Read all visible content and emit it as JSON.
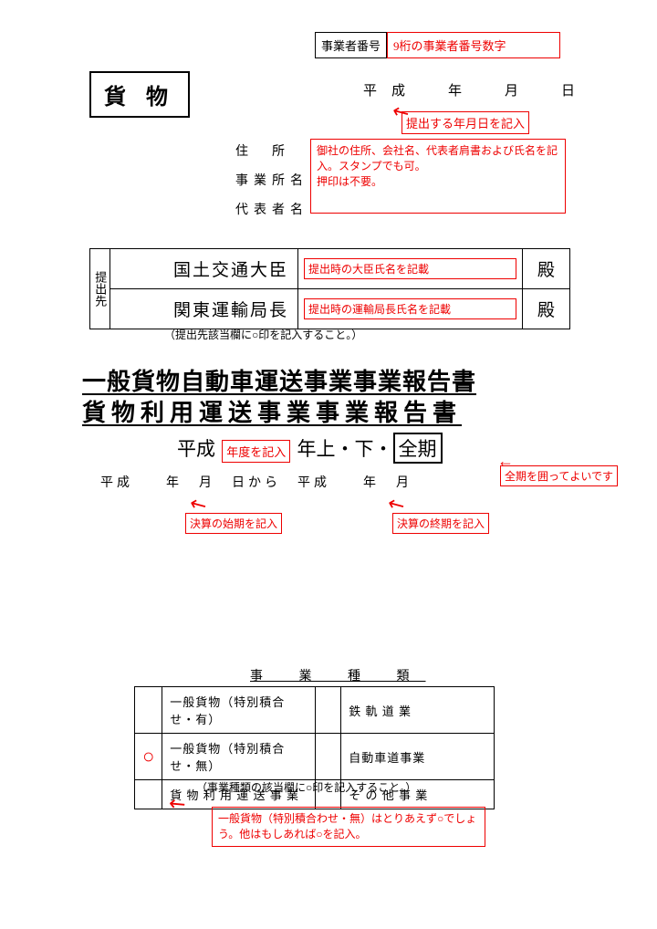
{
  "business_number": {
    "label": "事業者番号",
    "placeholder": "9桁の事業者番号数字"
  },
  "cargo_label": "貨 物",
  "date_line": "平成　年　月　日",
  "date_note": "提出する年月日を記入",
  "address": {
    "addr": "住　所",
    "office": "事業所名",
    "rep": "代表者名"
  },
  "address_note": "御社の住所、会社名、代表者肩書および氏名を記入。スタンプでも可。\n押印は不要。",
  "submit": {
    "side": "提出先",
    "row1_label": "国土交通大臣",
    "row1_note": "提出時の大臣氏名を記載",
    "row2_label": "関東運輸局長",
    "row2_note": "提出時の運輸局長氏名を記載",
    "suffix": "殿",
    "below": "（提出先該当欄に○印を記入すること。）"
  },
  "title1": "一般貨物自動車運送事業事業報告書",
  "title2": "貨物利用運送事業事業報告書",
  "period": {
    "prefix": "平成",
    "year_note": "年度を記入",
    "mid": "年上・下・",
    "zenki": "全期"
  },
  "range_line": "平成　　年　月　日から　平成　　年　月",
  "zenki_note": "全期を囲ってよいです",
  "start_note": "決算の始期を記入",
  "end_note": "決算の終期を記入",
  "type_header": "事 業 種 類",
  "types": {
    "r1c1": "一般貨物（特別積合せ・有）",
    "r1c2": "鉄 軌 道 業",
    "r2c1": "一般貨物（特別積合せ・無）",
    "r2c2": "自動車道事業",
    "r3c1": "貨 物 利 用 運 送 事 業",
    "r3c2": "そ の 他 事 業",
    "circle": "○"
  },
  "type_note": "（事業種類の該当欄に○印を記入すること。）",
  "type_explain": "一般貨物（特別積合わせ・無）はとりあえず○でしょう。他はもしあれば○を記入。"
}
